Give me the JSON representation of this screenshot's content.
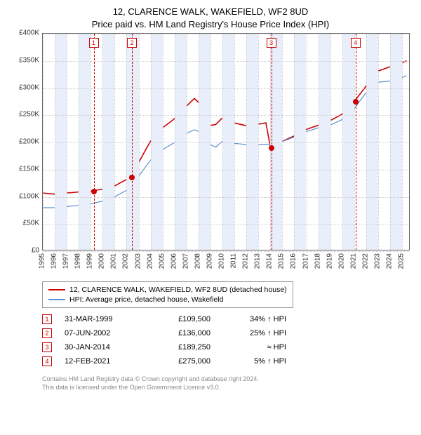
{
  "title_line1": "12, CLARENCE WALK, WAKEFIELD, WF2 8UD",
  "title_line2": "Price paid vs. HM Land Registry's House Price Index (HPI)",
  "chart": {
    "type": "line",
    "background_color": "#ffffff",
    "grid_color": "#cccccc",
    "shade_color": "#e8effa",
    "x_min_year": 1995,
    "x_max_year": 2025.7,
    "y_min": 0,
    "y_max": 400000,
    "y_ticks": [
      0,
      50000,
      100000,
      150000,
      200000,
      250000,
      300000,
      350000,
      400000
    ],
    "y_tick_labels": [
      "£0",
      "£50K",
      "£100K",
      "£150K",
      "£200K",
      "£250K",
      "£300K",
      "£350K",
      "£400K"
    ],
    "x_years": [
      1995,
      1996,
      1997,
      1998,
      1999,
      2000,
      2001,
      2002,
      2003,
      2004,
      2005,
      2006,
      2007,
      2008,
      2009,
      2010,
      2011,
      2012,
      2013,
      2014,
      2015,
      2016,
      2017,
      2018,
      2019,
      2020,
      2021,
      2022,
      2023,
      2024,
      2025
    ],
    "shade_pairs": [
      [
        1996,
        1997
      ],
      [
        1998,
        1999
      ],
      [
        2000,
        2001
      ],
      [
        2002,
        2003
      ],
      [
        2004,
        2005
      ],
      [
        2006,
        2007
      ],
      [
        2008,
        2009
      ],
      [
        2010,
        2011
      ],
      [
        2012,
        2013
      ],
      [
        2014,
        2015
      ],
      [
        2016,
        2017
      ],
      [
        2018,
        2019
      ],
      [
        2020,
        2021
      ],
      [
        2022,
        2023
      ],
      [
        2024,
        2025
      ]
    ],
    "series": [
      {
        "name": "property",
        "color": "#cc0000",
        "width": 1.6,
        "points": [
          [
            1995.0,
            105000
          ],
          [
            1996.0,
            103000
          ],
          [
            1997.0,
            105000
          ],
          [
            1998.0,
            107000
          ],
          [
            1999.25,
            109500
          ],
          [
            2000.0,
            112000
          ],
          [
            2001.0,
            118000
          ],
          [
            2002.0,
            130000
          ],
          [
            2002.44,
            136000
          ],
          [
            2003.0,
            160000
          ],
          [
            2004.0,
            200000
          ],
          [
            2005.0,
            225000
          ],
          [
            2006.0,
            242000
          ],
          [
            2007.0,
            265000
          ],
          [
            2007.7,
            280000
          ],
          [
            2008.2,
            270000
          ],
          [
            2009.0,
            230000
          ],
          [
            2009.5,
            232000
          ],
          [
            2010.0,
            243000
          ],
          [
            2011.0,
            235000
          ],
          [
            2012.0,
            230000
          ],
          [
            2013.0,
            232000
          ],
          [
            2013.7,
            235000
          ],
          [
            2014.08,
            189250
          ],
          [
            2014.5,
            195000
          ],
          [
            2015.0,
            200000
          ],
          [
            2016.0,
            210000
          ],
          [
            2017.0,
            222000
          ],
          [
            2018.0,
            230000
          ],
          [
            2019.0,
            238000
          ],
          [
            2020.0,
            250000
          ],
          [
            2021.0,
            268000
          ],
          [
            2021.12,
            275000
          ],
          [
            2022.0,
            300000
          ],
          [
            2023.0,
            330000
          ],
          [
            2024.0,
            338000
          ],
          [
            2025.0,
            345000
          ],
          [
            2025.5,
            350000
          ]
        ]
      },
      {
        "name": "hpi",
        "color": "#5b8fd6",
        "width": 1.2,
        "points": [
          [
            1995.0,
            78000
          ],
          [
            1996.0,
            78000
          ],
          [
            1997.0,
            80000
          ],
          [
            1998.0,
            82000
          ],
          [
            1999.0,
            85000
          ],
          [
            2000.0,
            90000
          ],
          [
            2001.0,
            98000
          ],
          [
            2002.0,
            110000
          ],
          [
            2003.0,
            135000
          ],
          [
            2004.0,
            165000
          ],
          [
            2005.0,
            185000
          ],
          [
            2006.0,
            198000
          ],
          [
            2007.0,
            215000
          ],
          [
            2007.7,
            222000
          ],
          [
            2008.2,
            218000
          ],
          [
            2009.0,
            195000
          ],
          [
            2009.5,
            190000
          ],
          [
            2010.0,
            200000
          ],
          [
            2011.0,
            197000
          ],
          [
            2012.0,
            195000
          ],
          [
            2013.0,
            195000
          ],
          [
            2014.0,
            195000
          ],
          [
            2015.0,
            200000
          ],
          [
            2016.0,
            208000
          ],
          [
            2017.0,
            218000
          ],
          [
            2018.0,
            225000
          ],
          [
            2019.0,
            230000
          ],
          [
            2020.0,
            240000
          ],
          [
            2021.0,
            258000
          ],
          [
            2022.0,
            288000
          ],
          [
            2023.0,
            310000
          ],
          [
            2024.0,
            312000
          ],
          [
            2025.0,
            318000
          ],
          [
            2025.5,
            322000
          ]
        ]
      }
    ],
    "sales": [
      {
        "n": "1",
        "year": 1999.25,
        "price": 109500
      },
      {
        "n": "2",
        "year": 2002.44,
        "price": 136000
      },
      {
        "n": "3",
        "year": 2014.08,
        "price": 189250
      },
      {
        "n": "4",
        "year": 2021.12,
        "price": 275000
      }
    ]
  },
  "legend": {
    "items": [
      {
        "color": "#cc0000",
        "label": "12, CLARENCE WALK, WAKEFIELD, WF2 8UD (detached house)"
      },
      {
        "color": "#5b8fd6",
        "label": "HPI: Average price, detached house, Wakefield"
      }
    ]
  },
  "sales_table": [
    {
      "n": "1",
      "date": "31-MAR-1999",
      "price": "£109,500",
      "hpi": "34% ↑ HPI"
    },
    {
      "n": "2",
      "date": "07-JUN-2002",
      "price": "£136,000",
      "hpi": "25% ↑ HPI"
    },
    {
      "n": "3",
      "date": "30-JAN-2014",
      "price": "£189,250",
      "hpi": "≈ HPI"
    },
    {
      "n": "4",
      "date": "12-FEB-2021",
      "price": "£275,000",
      "hpi": "5% ↑ HPI"
    }
  ],
  "footnote_line1": "Contains HM Land Registry data © Crown copyright and database right 2024.",
  "footnote_line2": "This data is licensed under the Open Government Licence v3.0."
}
